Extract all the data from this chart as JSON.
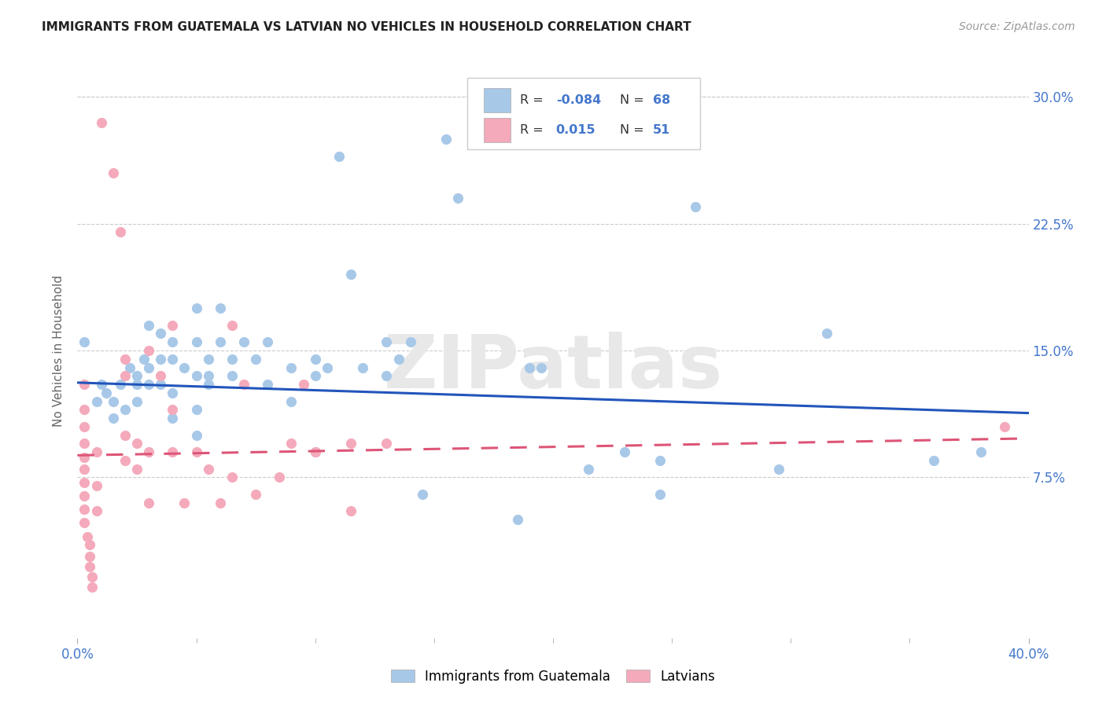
{
  "title": "IMMIGRANTS FROM GUATEMALA VS LATVIAN NO VEHICLES IN HOUSEHOLD CORRELATION CHART",
  "source": "Source: ZipAtlas.com",
  "ylabel": "No Vehicles in Household",
  "yticks_labels": [
    "7.5%",
    "15.0%",
    "22.5%",
    "30.0%"
  ],
  "ytick_vals": [
    0.075,
    0.15,
    0.225,
    0.3
  ],
  "xlim": [
    0.0,
    0.4
  ],
  "ylim": [
    -0.02,
    0.32
  ],
  "legend_labels": [
    "Immigrants from Guatemala",
    "Latvians"
  ],
  "legend_r_blue": "-0.084",
  "legend_n_blue": "68",
  "legend_r_pink": "0.015",
  "legend_n_pink": "51",
  "blue_color": "#a8c8e8",
  "pink_color": "#f4aabb",
  "line_blue": "#2255bb",
  "line_pink": "#dd5577",
  "text_blue": "#4477cc",
  "watermark": "ZIPatlas",
  "blue_scatter": [
    [
      0.003,
      0.155
    ],
    [
      0.008,
      0.12
    ],
    [
      0.01,
      0.13
    ],
    [
      0.012,
      0.125
    ],
    [
      0.015,
      0.12
    ],
    [
      0.015,
      0.11
    ],
    [
      0.018,
      0.13
    ],
    [
      0.02,
      0.115
    ],
    [
      0.022,
      0.14
    ],
    [
      0.025,
      0.135
    ],
    [
      0.025,
      0.13
    ],
    [
      0.025,
      0.12
    ],
    [
      0.028,
      0.145
    ],
    [
      0.03,
      0.165
    ],
    [
      0.03,
      0.14
    ],
    [
      0.03,
      0.13
    ],
    [
      0.035,
      0.16
    ],
    [
      0.035,
      0.145
    ],
    [
      0.035,
      0.13
    ],
    [
      0.04,
      0.155
    ],
    [
      0.04,
      0.145
    ],
    [
      0.04,
      0.125
    ],
    [
      0.04,
      0.11
    ],
    [
      0.045,
      0.14
    ],
    [
      0.05,
      0.175
    ],
    [
      0.05,
      0.155
    ],
    [
      0.05,
      0.135
    ],
    [
      0.05,
      0.115
    ],
    [
      0.05,
      0.1
    ],
    [
      0.055,
      0.145
    ],
    [
      0.055,
      0.135
    ],
    [
      0.055,
      0.13
    ],
    [
      0.06,
      0.175
    ],
    [
      0.06,
      0.155
    ],
    [
      0.065,
      0.145
    ],
    [
      0.065,
      0.135
    ],
    [
      0.07,
      0.155
    ],
    [
      0.075,
      0.145
    ],
    [
      0.08,
      0.155
    ],
    [
      0.08,
      0.13
    ],
    [
      0.09,
      0.14
    ],
    [
      0.09,
      0.12
    ],
    [
      0.1,
      0.145
    ],
    [
      0.1,
      0.135
    ],
    [
      0.1,
      0.09
    ],
    [
      0.105,
      0.14
    ],
    [
      0.11,
      0.265
    ],
    [
      0.115,
      0.195
    ],
    [
      0.12,
      0.14
    ],
    [
      0.13,
      0.155
    ],
    [
      0.13,
      0.135
    ],
    [
      0.135,
      0.145
    ],
    [
      0.14,
      0.155
    ],
    [
      0.145,
      0.065
    ],
    [
      0.155,
      0.275
    ],
    [
      0.16,
      0.24
    ],
    [
      0.185,
      0.05
    ],
    [
      0.19,
      0.14
    ],
    [
      0.195,
      0.14
    ],
    [
      0.215,
      0.08
    ],
    [
      0.23,
      0.09
    ],
    [
      0.245,
      0.085
    ],
    [
      0.245,
      0.065
    ],
    [
      0.26,
      0.235
    ],
    [
      0.295,
      0.08
    ],
    [
      0.315,
      0.16
    ],
    [
      0.36,
      0.085
    ],
    [
      0.38,
      0.09
    ]
  ],
  "pink_scatter": [
    [
      0.003,
      0.13
    ],
    [
      0.003,
      0.115
    ],
    [
      0.003,
      0.105
    ],
    [
      0.003,
      0.095
    ],
    [
      0.003,
      0.087
    ],
    [
      0.003,
      0.08
    ],
    [
      0.003,
      0.072
    ],
    [
      0.003,
      0.064
    ],
    [
      0.003,
      0.056
    ],
    [
      0.003,
      0.048
    ],
    [
      0.004,
      0.04
    ],
    [
      0.005,
      0.035
    ],
    [
      0.005,
      0.028
    ],
    [
      0.005,
      0.022
    ],
    [
      0.006,
      0.016
    ],
    [
      0.006,
      0.01
    ],
    [
      0.008,
      0.09
    ],
    [
      0.008,
      0.07
    ],
    [
      0.008,
      0.055
    ],
    [
      0.01,
      0.285
    ],
    [
      0.015,
      0.255
    ],
    [
      0.018,
      0.22
    ],
    [
      0.02,
      0.145
    ],
    [
      0.02,
      0.135
    ],
    [
      0.02,
      0.1
    ],
    [
      0.02,
      0.085
    ],
    [
      0.025,
      0.095
    ],
    [
      0.025,
      0.08
    ],
    [
      0.03,
      0.15
    ],
    [
      0.03,
      0.09
    ],
    [
      0.03,
      0.06
    ],
    [
      0.035,
      0.135
    ],
    [
      0.04,
      0.165
    ],
    [
      0.04,
      0.115
    ],
    [
      0.04,
      0.09
    ],
    [
      0.045,
      0.06
    ],
    [
      0.05,
      0.09
    ],
    [
      0.055,
      0.08
    ],
    [
      0.06,
      0.06
    ],
    [
      0.065,
      0.165
    ],
    [
      0.065,
      0.075
    ],
    [
      0.07,
      0.13
    ],
    [
      0.075,
      0.065
    ],
    [
      0.085,
      0.075
    ],
    [
      0.09,
      0.095
    ],
    [
      0.095,
      0.13
    ],
    [
      0.1,
      0.09
    ],
    [
      0.115,
      0.095
    ],
    [
      0.115,
      0.055
    ],
    [
      0.13,
      0.095
    ],
    [
      0.39,
      0.105
    ]
  ],
  "blue_trendline": [
    [
      0.0,
      0.131
    ],
    [
      0.4,
      0.113
    ]
  ],
  "pink_trendline": [
    [
      0.0,
      0.088
    ],
    [
      0.4,
      0.098
    ]
  ]
}
